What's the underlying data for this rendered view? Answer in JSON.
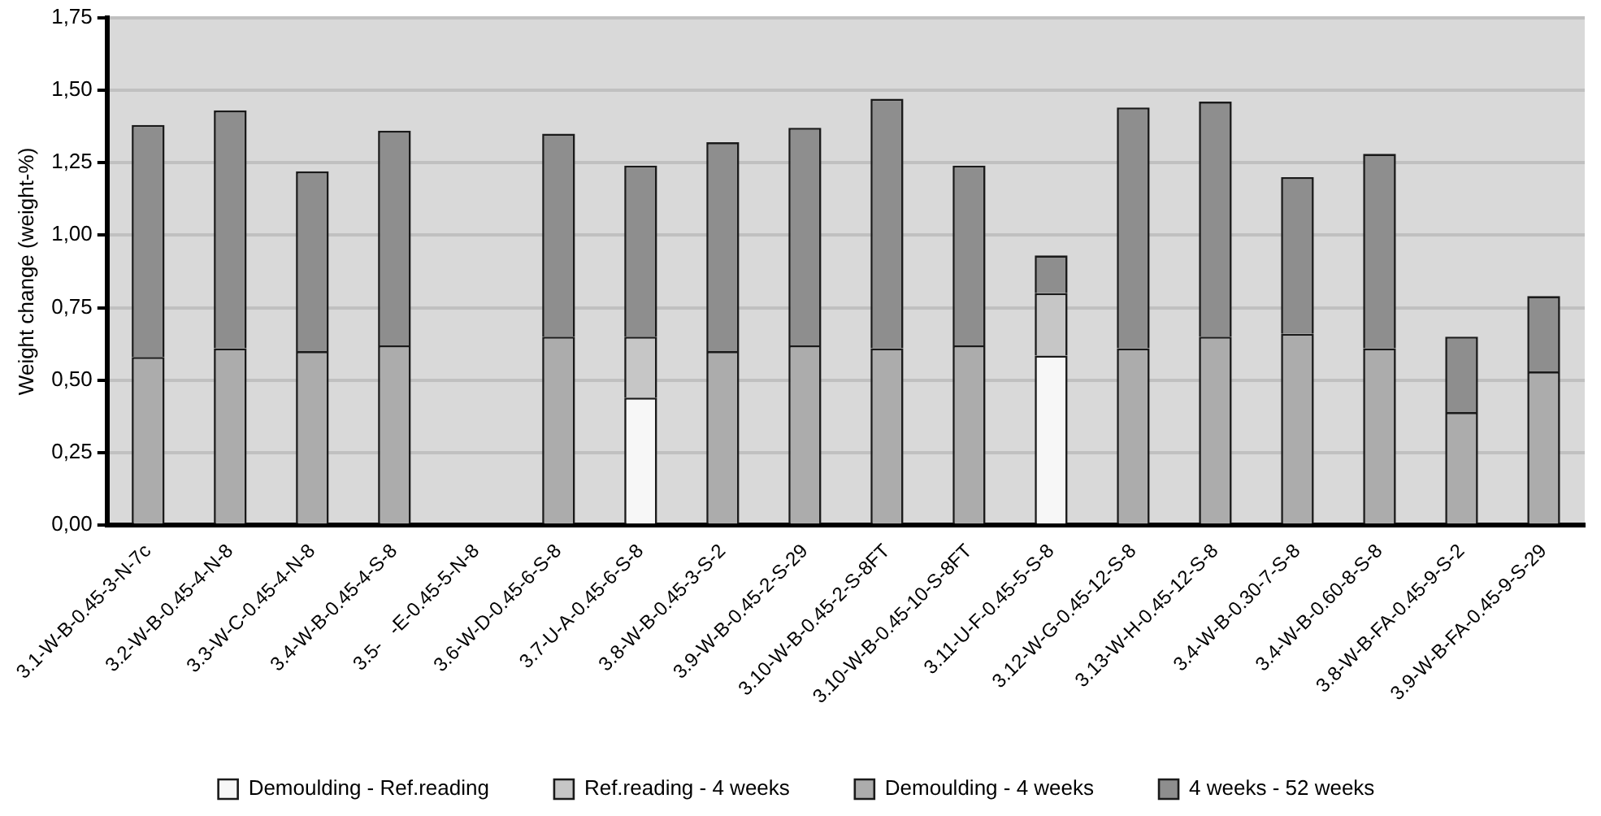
{
  "chart_data": {
    "type": "bar",
    "ylabel": "Weight change (weight-%)",
    "categories": [
      "3.1-W-B-0.45-3-N-7c",
      "3.2-W-B-0.45-4-N-8",
      "3.3-W-C-0.45-4-N-8",
      "3.4-W-B-0.45-4-S-8",
      "3.5-   -E-0.45-5-N-8",
      "3.6-W-D-0.45-6-S-8",
      "3.7-U-A-0.45-6-S-8",
      "3.8-W-B-0.45-3-S-2",
      "3.9-W-B-0.45-2-S-29",
      "3.10-W-B-0.45-2-S-8FT",
      "3.10-W-B-0.45-10-S-8FT",
      "3.11-U-F-0.45-5-S-8",
      "3.12-W-G-0.45-12-S-8",
      "3.13-W-H-0.45-12-S-8",
      "3.4-W-B-0.30-7-S-8",
      "3.4-W-B-0.60-8-S-8",
      "3.8-W-B-FA-0.45-9-S-2",
      "3.9-W-B-FA-0.45-9-S-29"
    ],
    "stacked": true,
    "series": [
      {
        "name": "Demoulding - Ref.reading",
        "color": "#f7f7f7",
        "values": [
          null,
          null,
          null,
          null,
          null,
          null,
          0.44,
          null,
          null,
          null,
          null,
          0.585,
          null,
          null,
          null,
          null,
          null,
          null
        ]
      },
      {
        "name": "Ref.reading - 4 weeks",
        "color": "#c6c6c6",
        "values": [
          null,
          null,
          null,
          null,
          null,
          null,
          0.21,
          null,
          null,
          null,
          null,
          0.215,
          null,
          null,
          null,
          null,
          null,
          null
        ]
      },
      {
        "name": "Demoulding - 4 weeks",
        "color": "#acacac",
        "values": [
          0.58,
          0.61,
          0.6,
          0.62,
          null,
          0.65,
          null,
          0.6,
          0.62,
          0.61,
          0.62,
          null,
          0.61,
          0.65,
          0.66,
          0.61,
          0.39,
          0.53
        ]
      },
      {
        "name": "4 weeks - 52 weeks",
        "color": "#8e8e8e",
        "values": [
          0.8,
          0.82,
          0.62,
          0.74,
          null,
          0.7,
          0.59,
          0.72,
          0.75,
          0.86,
          0.62,
          0.13,
          0.83,
          0.81,
          0.54,
          0.67,
          0.26,
          0.26
        ]
      }
    ],
    "ylim": [
      0,
      1.75
    ],
    "yticks": [
      {
        "value": 0,
        "label": "0,00"
      },
      {
        "value": 0.25,
        "label": "0,25"
      },
      {
        "value": 0.5,
        "label": "0,50"
      },
      {
        "value": 0.75,
        "label": "0,75"
      },
      {
        "value": 1,
        "label": "1,00"
      },
      {
        "value": 1.25,
        "label": "1,25"
      },
      {
        "value": 1.5,
        "label": "1,50"
      },
      {
        "value": 1.75,
        "label": "1,75"
      }
    ],
    "grid": "y",
    "legend": "bottom"
  }
}
